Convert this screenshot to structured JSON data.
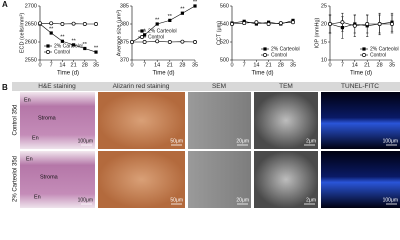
{
  "panel_a_label": "A",
  "panel_b_label": "B",
  "chart_data": [
    {
      "type": "line",
      "y_label": "ECD (cells/mm²)",
      "x_label": "Time (d)",
      "x": [
        0,
        7,
        14,
        21,
        28,
        35
      ],
      "xlim": [
        0,
        35
      ],
      "xticks": [
        0,
        7,
        14,
        21,
        28,
        35
      ],
      "ylim": [
        2550,
        2700
      ],
      "yticks": [
        2550,
        2600,
        2650,
        2700
      ],
      "legend": "lower left",
      "series": [
        {
          "name": "2% Carteolol",
          "color": "#000000",
          "marker": "square",
          "values": [
            2650,
            2625,
            2602,
            2592,
            2582,
            2572
          ],
          "stars": [
            null,
            "**",
            "**",
            "**",
            "**",
            "**"
          ]
        },
        {
          "name": "Control",
          "color": "#000000",
          "marker": "circle",
          "values": [
            2652,
            2652,
            2650,
            2651,
            2650,
            2650
          ]
        }
      ]
    },
    {
      "type": "line",
      "y_label": "Average size (μm²)",
      "x_label": "Time (d)",
      "x": [
        0,
        7,
        14,
        21,
        28,
        35
      ],
      "xlim": [
        0,
        35
      ],
      "xticks": [
        0,
        7,
        14,
        21,
        28,
        35
      ],
      "ylim": [
        370,
        385
      ],
      "yticks": [
        370,
        375,
        380,
        385
      ],
      "legend": "center",
      "series": [
        {
          "name": "2% Carteolol",
          "color": "#000000",
          "marker": "square",
          "values": [
            375,
            377,
            380,
            381,
            383,
            385
          ],
          "stars": [
            null,
            "*",
            "**",
            "**",
            "**",
            "**"
          ]
        },
        {
          "name": "Control",
          "color": "#000000",
          "marker": "circle",
          "values": [
            375,
            375,
            375.2,
            375,
            375.1,
            375
          ]
        }
      ]
    },
    {
      "type": "line",
      "y_label": "CCT (μm)",
      "x_label": "Time (d)",
      "x": [
        0,
        7,
        14,
        21,
        28,
        35
      ],
      "xlim": [
        0,
        35
      ],
      "xticks": [
        0,
        7,
        14,
        21,
        28,
        35
      ],
      "ylim": [
        500,
        560
      ],
      "yticks": [
        500,
        520,
        540,
        560
      ],
      "legend": "lower right",
      "series": [
        {
          "name": "2% Carteolol",
          "color": "#000000",
          "marker": "square",
          "values": [
            541,
            543,
            540,
            542,
            540,
            544
          ]
        },
        {
          "name": "Control",
          "color": "#000000",
          "marker": "circle",
          "values": [
            540,
            541,
            542,
            540,
            541,
            542
          ]
        }
      ]
    },
    {
      "type": "line",
      "y_label": "IOP (mmHg)",
      "x_label": "Time (d)",
      "x": [
        0,
        7,
        14,
        21,
        28,
        35
      ],
      "xlim": [
        0,
        35
      ],
      "xticks": [
        0,
        7,
        14,
        21,
        28,
        35
      ],
      "ylim": [
        10,
        25
      ],
      "yticks": [
        10,
        15,
        20,
        25
      ],
      "legend": "lower right",
      "series": [
        {
          "name": "2% Carteolol",
          "color": "#000000",
          "marker": "square",
          "values": [
            20,
            19,
            20,
            19.5,
            20,
            20.5
          ],
          "errors": [
            2.5,
            3,
            2.5,
            3,
            2.5,
            2.5
          ]
        },
        {
          "name": "Control",
          "color": "#000000",
          "marker": "circle",
          "values": [
            20,
            20.5,
            19.5,
            20,
            20,
            20
          ],
          "errors": [
            2.5,
            2.5,
            3,
            2.5,
            3,
            2.5
          ]
        }
      ]
    }
  ],
  "panel_b": {
    "columns": [
      "H&E staining",
      "Alizarin red staining",
      "SEM",
      "TEM",
      "TUNEL-FITC"
    ],
    "rows": [
      {
        "label": "Control 35d",
        "layers": [
          "En",
          "Stroma",
          "En"
        ],
        "scales": [
          "100μm",
          "50μm",
          "20μm",
          "2μm",
          "100μm"
        ]
      },
      {
        "label": "2% Carteolol 35d",
        "layers": [
          "En",
          "Stroma",
          "En"
        ],
        "scales": [
          "100μm",
          "50μm",
          "20μm",
          "2μm",
          "100μm"
        ]
      }
    ]
  }
}
